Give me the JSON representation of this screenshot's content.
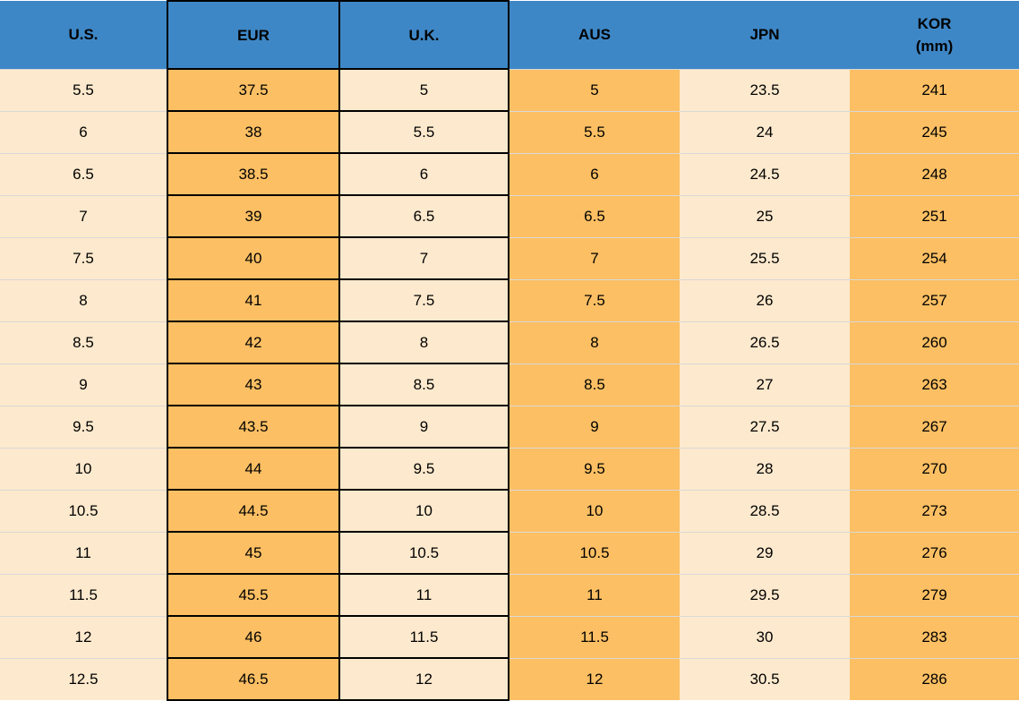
{
  "chart_data": {
    "type": "table",
    "columns": [
      "U.S.",
      "EUR",
      "U.K.",
      "AUS",
      "JPN",
      "KOR (mm)"
    ],
    "rows": [
      [
        "5.5",
        "37.5",
        "5",
        "5",
        "23.5",
        "241"
      ],
      [
        "6",
        "38",
        "5.5",
        "5.5",
        "24",
        "245"
      ],
      [
        "6.5",
        "38.5",
        "6",
        "6",
        "24.5",
        "248"
      ],
      [
        "7",
        "39",
        "6.5",
        "6.5",
        "25",
        "251"
      ],
      [
        "7.5",
        "40",
        "7",
        "7",
        "25.5",
        "254"
      ],
      [
        "8",
        "41",
        "7.5",
        "7.5",
        "26",
        "257"
      ],
      [
        "8.5",
        "42",
        "8",
        "8",
        "26.5",
        "260"
      ],
      [
        "9",
        "43",
        "8.5",
        "8.5",
        "27",
        "263"
      ],
      [
        "9.5",
        "43.5",
        "9",
        "9",
        "27.5",
        "267"
      ],
      [
        "10",
        "44",
        "9.5",
        "9.5",
        "28",
        "270"
      ],
      [
        "10.5",
        "44.5",
        "10",
        "10",
        "28.5",
        "273"
      ],
      [
        "11",
        "45",
        "10.5",
        "10.5",
        "29",
        "276"
      ],
      [
        "11.5",
        "45.5",
        "11",
        "11",
        "29.5",
        "279"
      ],
      [
        "12",
        "46",
        "11.5",
        "11.5",
        "30",
        "283"
      ],
      [
        "12.5",
        "46.5",
        "12",
        "12",
        "30.5",
        "286"
      ]
    ]
  },
  "table": {
    "columns": [
      {
        "id": "us",
        "label": "U.S.",
        "cell_style": "plain-cream",
        "header_style": "plain"
      },
      {
        "id": "eur",
        "label": "EUR",
        "cell_style": "boxed-orange",
        "header_style": "boxed"
      },
      {
        "id": "uk",
        "label": "U.K.",
        "cell_style": "boxed-cream",
        "header_style": "boxed"
      },
      {
        "id": "aus",
        "label": "AUS",
        "cell_style": "plain-orange",
        "header_style": "plain"
      },
      {
        "id": "jpn",
        "label": "JPN",
        "cell_style": "plain-cream",
        "header_style": "plain"
      },
      {
        "id": "kor",
        "label": "KOR",
        "label2": "(mm)",
        "cell_style": "plain-orange",
        "header_style": "plain"
      }
    ]
  },
  "colors": {
    "header_blue": "#3E87C6",
    "cell_orange": "#FCBF63",
    "cell_cream": "#FDE9CD",
    "box_border": "#000000",
    "row_separator": "#D9D9D9",
    "text": "#000000"
  }
}
